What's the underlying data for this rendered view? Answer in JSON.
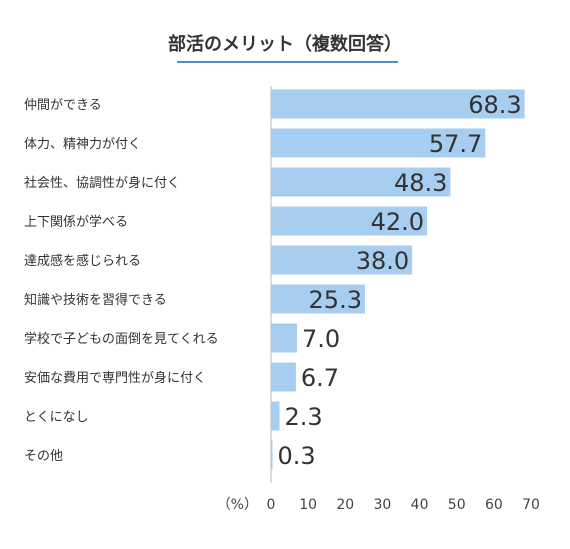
{
  "chart_data": {
    "type": "bar",
    "orientation": "horizontal",
    "title": "部活のメリット（複数回答）",
    "xlabel": "（%）",
    "categories": [
      "仲間ができる",
      "体力、精神力が付く",
      "社会性、協調性が身に付く",
      "上下関係が学べる",
      "達成感を感じられる",
      "知識や技術を習得できる",
      "学校で子どもの面倒を見てくれる",
      "安価な費用で専門性が身に付く",
      "とくになし",
      "その他"
    ],
    "values": [
      68.3,
      57.7,
      48.3,
      42.0,
      38.0,
      25.3,
      7.0,
      6.7,
      2.3,
      0.3
    ],
    "value_labels": [
      "68.3",
      "57.7",
      "48.3",
      "42.0",
      "38.0",
      "25.3",
      "7.0",
      "6.7",
      "2.3",
      "0.3"
    ],
    "xlim": [
      0,
      70
    ],
    "ticks": [
      "0",
      "10",
      "20",
      "30",
      "40",
      "50",
      "60",
      "70"
    ],
    "grid": false,
    "legend": "none",
    "colors": {
      "bar": "#a7cdf0",
      "title_underline": "#4a90d9",
      "axis": "#bbbbbb",
      "text": "#333333"
    }
  }
}
